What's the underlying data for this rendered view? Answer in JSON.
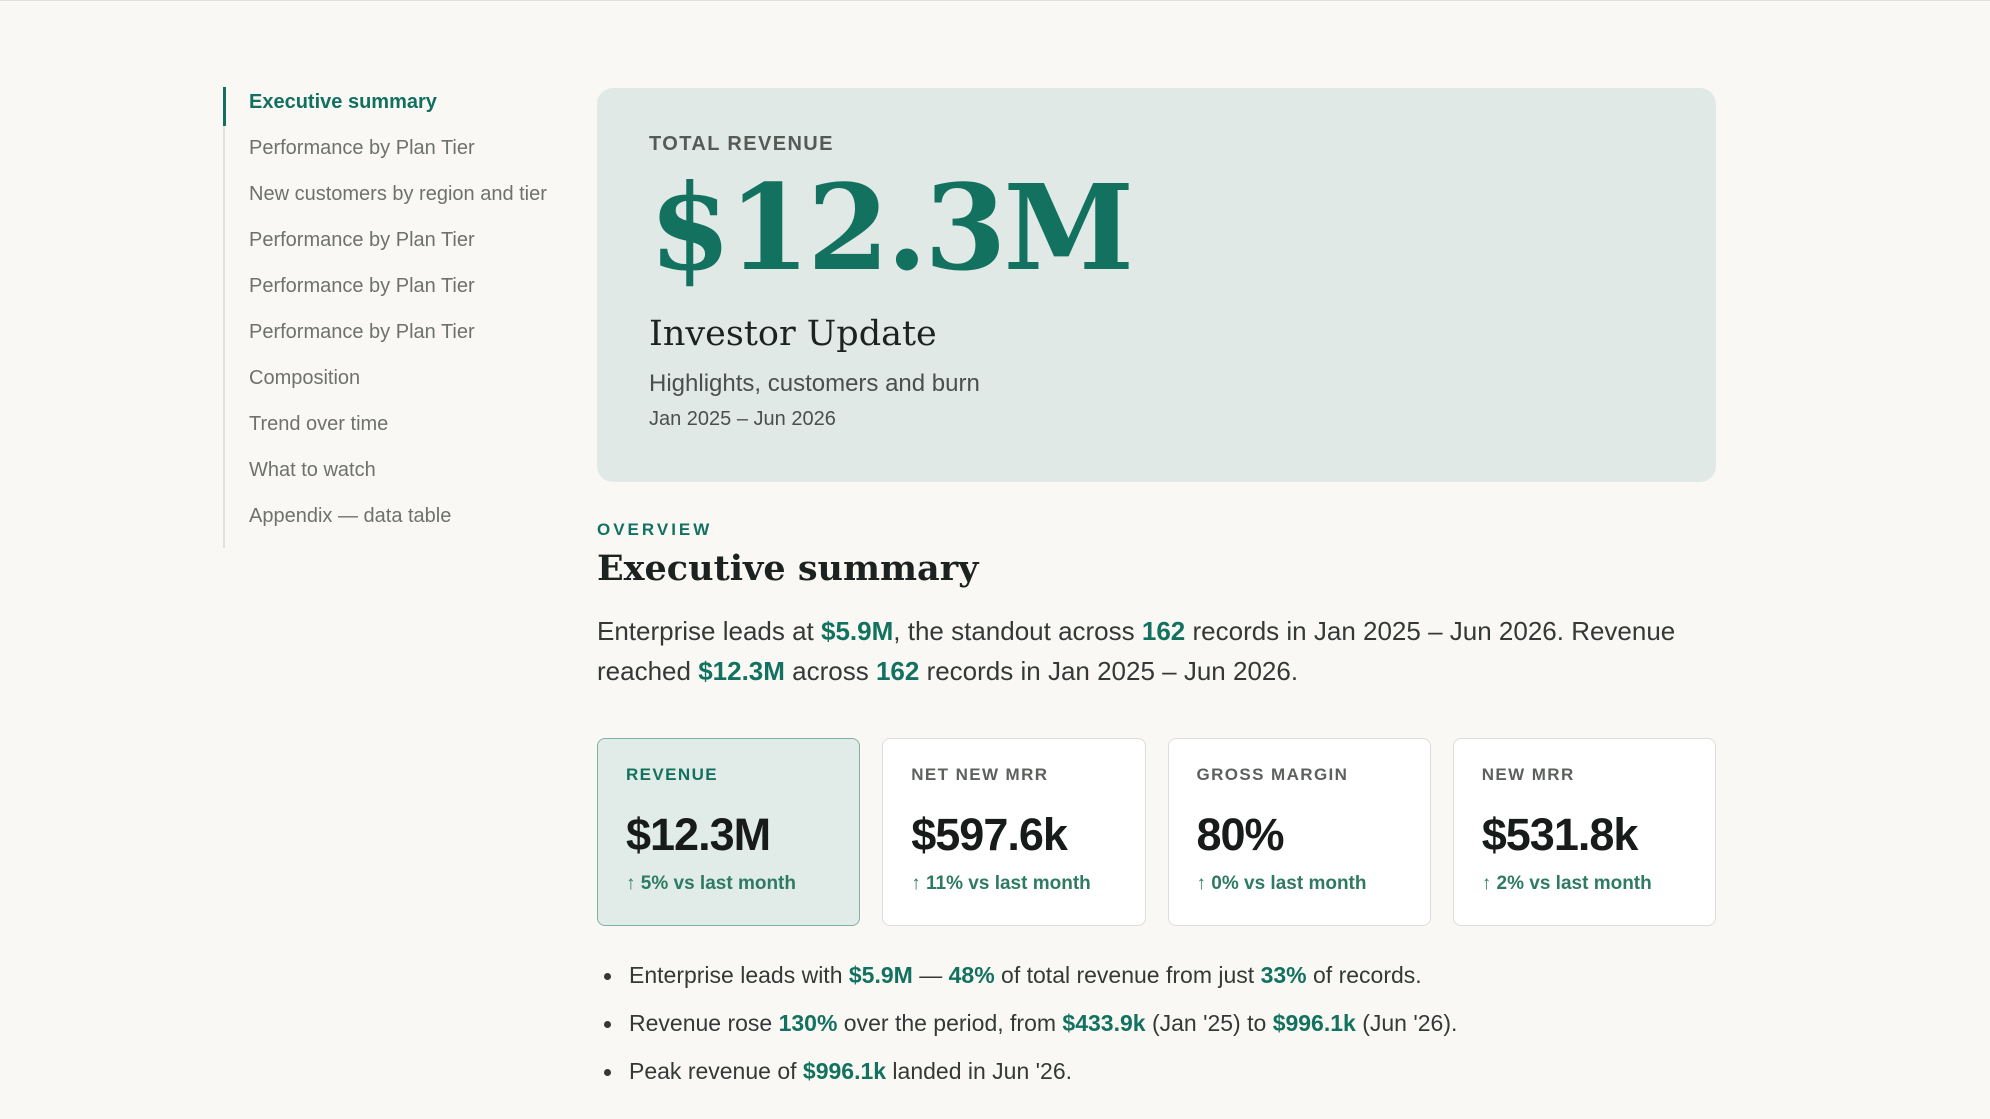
{
  "toc": {
    "items": [
      "Executive summary",
      "Performance by Plan Tier",
      "New customers by region and tier",
      "Performance by Plan Tier",
      "Performance by Plan Tier",
      "Performance by Plan Tier",
      "Composition",
      "Trend over time",
      "What to watch",
      "Appendix — data table"
    ]
  },
  "hero": {
    "kicker": "TOTAL REVENUE",
    "value": "$12.3M",
    "title": "Investor Update",
    "subtitle": "Highlights, customers and burn",
    "range": "Jan 2025 – Jun 2026"
  },
  "overview": {
    "overline": "OVERVIEW",
    "heading": "Executive summary",
    "lead": {
      "p1": "Enterprise leads at ",
      "v1": "$5.9M",
      "p2": ", the standout across ",
      "v2": "162",
      "p3": " records in Jan 2025 – Jun 2026. Revenue reached ",
      "v3": "$12.3M",
      "p4": " across ",
      "v4": "162",
      "p5": " records in Jan 2025 – Jun 2026."
    }
  },
  "kpis": [
    {
      "label": "REVENUE",
      "value": "$12.3M",
      "delta": "↑ 5% vs last month"
    },
    {
      "label": "NET NEW MRR",
      "value": "$597.6k",
      "delta": "↑ 11% vs last month"
    },
    {
      "label": "GROSS MARGIN",
      "value": "80%",
      "delta": "↑ 0% vs last month"
    },
    {
      "label": "NEW MRR",
      "value": "$531.8k",
      "delta": "↑ 2% vs last month"
    }
  ],
  "bullets": {
    "b1": {
      "t1": "Enterprise leads with ",
      "v1": "$5.9M",
      "t2": " — ",
      "v2": "48%",
      "t3": " of total revenue from just ",
      "v3": "33%",
      "t4": " of records."
    },
    "b2": {
      "t1": "Revenue rose ",
      "v1": "130%",
      "t2": " over the period, from ",
      "v2": "$433.9k",
      "t3": " (Jan '25) to ",
      "v3": "$996.1k",
      "t4": " (Jun '26)."
    },
    "b3": {
      "t1": "Peak revenue of ",
      "v1": "$996.1k",
      "t2": " landed in Jun '26."
    }
  },
  "colors": {
    "accent": "#13725f",
    "background": "#faf8f4",
    "hero_bg": "#e1e9e6"
  }
}
